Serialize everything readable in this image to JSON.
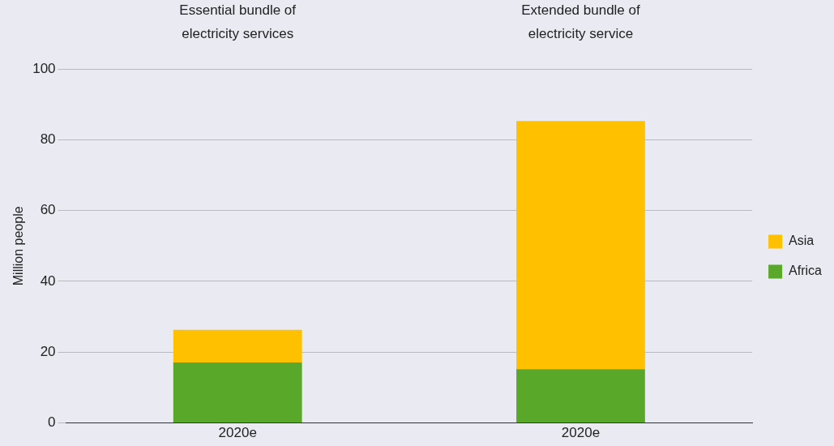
{
  "chart_data": {
    "type": "bar",
    "stacked": true,
    "categories": [
      "2020e",
      "2020e"
    ],
    "series": [
      {
        "name": "Africa",
        "color": "#5aa829",
        "values": [
          17.1,
          15.2
        ]
      },
      {
        "name": "Asia",
        "color": "#ffc000",
        "values": [
          9.2,
          70.1
        ]
      }
    ],
    "ylabel": "Million people",
    "ylim": [
      0,
      100
    ],
    "yticks": [
      0,
      20,
      40,
      60,
      80,
      100
    ],
    "grid": "y",
    "legend": "right",
    "annotations": [
      "Essential bundle of electricity services",
      "Extended bundle of electricity service"
    ]
  }
}
